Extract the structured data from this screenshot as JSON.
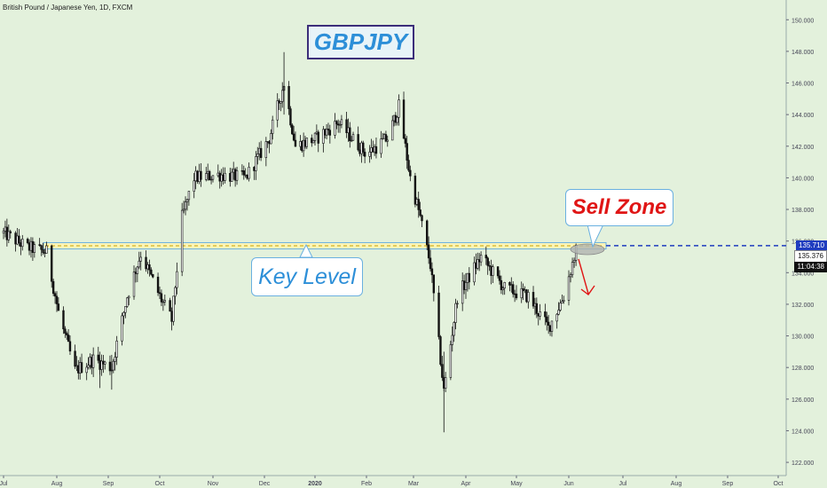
{
  "symbol_label": "British Pound / Japanese Yen, 1D, FXCM",
  "title": "GBPJPY",
  "callouts": {
    "key_level": "Key Level",
    "sell_zone": "Sell Zone"
  },
  "price_tags": {
    "level": "135.710",
    "last": "135.376",
    "countdown": "11:04:38"
  },
  "colors": {
    "background": "#e3f1dc",
    "candle": "#111111",
    "level_line": "#1f3cbf",
    "key_zone_fill": "#fff4b0",
    "key_zone_border": "#6ab0e0",
    "sell_arrow": "#e01515",
    "title_text": "#2d8fd8",
    "sell_text": "#e01515"
  },
  "chart_data": {
    "type": "candlestick",
    "yaxis": {
      "side": "right",
      "ylim": [
        121.5,
        150.8
      ],
      "ticks": [
        "150.000",
        "148.000",
        "146.000",
        "144.000",
        "142.000",
        "140.000",
        "138.000",
        "136.000",
        "134.000",
        "132.000",
        "130.000",
        "128.000",
        "126.000",
        "124.000",
        "122.000"
      ]
    },
    "xaxis": {
      "ticks": [
        "Jul",
        "Aug",
        "Sep",
        "Oct",
        "Nov",
        "Dec",
        "2020",
        "Feb",
        "Mar",
        "Apr",
        "May",
        "Jun",
        "Jul",
        "Aug",
        "Sep",
        "Oct"
      ]
    },
    "key_level_zone": [
      135.5,
      135.9
    ],
    "horizontal_level": 135.71,
    "last_price": 135.376,
    "close_path": [
      {
        "date": "2019-07-01",
        "close": 136.5
      },
      {
        "date": "2019-07-15",
        "close": 135.6
      },
      {
        "date": "2019-07-26",
        "close": 135.3
      },
      {
        "date": "2019-08-02",
        "close": 131.5
      },
      {
        "date": "2019-08-12",
        "close": 127.8
      },
      {
        "date": "2019-08-23",
        "close": 128.5
      },
      {
        "date": "2019-09-03",
        "close": 128.0
      },
      {
        "date": "2019-09-12",
        "close": 132.5
      },
      {
        "date": "2019-09-20",
        "close": 135.2
      },
      {
        "date": "2019-10-01",
        "close": 132.5
      },
      {
        "date": "2019-10-08",
        "close": 131.0
      },
      {
        "date": "2019-10-14",
        "close": 137.5
      },
      {
        "date": "2019-10-21",
        "close": 140.0
      },
      {
        "date": "2019-11-05",
        "close": 140.2
      },
      {
        "date": "2019-11-20",
        "close": 140.0
      },
      {
        "date": "2019-12-04",
        "close": 142.5
      },
      {
        "date": "2019-12-13",
        "close": 146.0
      },
      {
        "date": "2019-12-20",
        "close": 142.0
      },
      {
        "date": "2020-01-02",
        "close": 142.5
      },
      {
        "date": "2020-01-15",
        "close": 143.5
      },
      {
        "date": "2020-02-01",
        "close": 141.5
      },
      {
        "date": "2020-02-14",
        "close": 142.5
      },
      {
        "date": "2020-02-21",
        "close": 144.5
      },
      {
        "date": "2020-02-28",
        "close": 140.0
      },
      {
        "date": "2020-03-05",
        "close": 137.5
      },
      {
        "date": "2020-03-11",
        "close": 134.5
      },
      {
        "date": "2020-03-19",
        "close": 126.5
      },
      {
        "date": "2020-03-27",
        "close": 132.5
      },
      {
        "date": "2020-04-10",
        "close": 135.0
      },
      {
        "date": "2020-04-24",
        "close": 133.0
      },
      {
        "date": "2020-05-08",
        "close": 132.5
      },
      {
        "date": "2020-05-20",
        "close": 130.5
      },
      {
        "date": "2020-05-29",
        "close": 132.5
      },
      {
        "date": "2020-06-05",
        "close": 135.4
      }
    ]
  }
}
